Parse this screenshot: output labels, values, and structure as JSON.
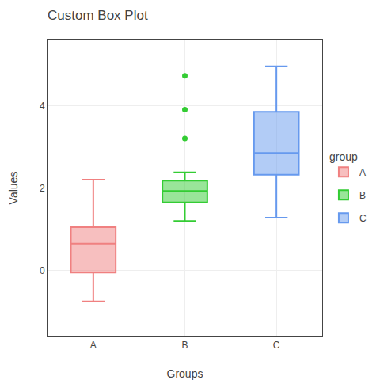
{
  "chart_data": {
    "type": "box",
    "title": "Custom Box Plot",
    "xlabel": "Groups",
    "ylabel": "Values",
    "legend_title": "group",
    "categories": [
      "A",
      "B",
      "C"
    ],
    "series": [
      {
        "name": "A",
        "color": "#F08080",
        "lowerfence": -0.75,
        "q1": -0.05,
        "median": 0.65,
        "q3": 1.05,
        "upperfence": 2.2,
        "outliers": []
      },
      {
        "name": "B",
        "color": "#33CC33",
        "lowerfence": 1.2,
        "q1": 1.65,
        "median": 1.93,
        "q3": 2.18,
        "upperfence": 2.38,
        "outliers": [
          3.2,
          3.9,
          4.72
        ]
      },
      {
        "name": "C",
        "color": "#6699EE",
        "lowerfence": 1.28,
        "q1": 2.32,
        "median": 2.85,
        "q3": 3.85,
        "upperfence": 4.95,
        "outliers": []
      }
    ],
    "ylim": [
      -1.6,
      5.6
    ],
    "yticks": [
      0,
      2,
      4
    ],
    "grid": true,
    "legend": "right"
  }
}
